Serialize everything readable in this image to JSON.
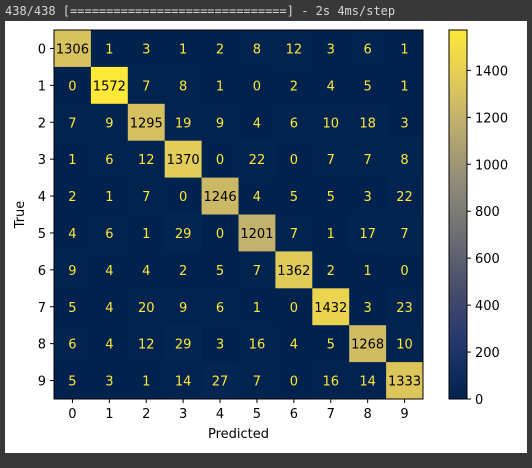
{
  "console": {
    "progress_line": "438/438 [==============================] - 2s 4ms/step"
  },
  "chart_data": {
    "type": "heatmap",
    "title": "",
    "xlabel": "Predicted",
    "ylabel": "True",
    "x_labels": [
      "0",
      "1",
      "2",
      "3",
      "4",
      "5",
      "6",
      "7",
      "8",
      "9"
    ],
    "y_labels": [
      "0",
      "1",
      "2",
      "3",
      "4",
      "5",
      "6",
      "7",
      "8",
      "9"
    ],
    "matrix": [
      [
        1306,
        1,
        3,
        1,
        2,
        8,
        12,
        3,
        6,
        1
      ],
      [
        0,
        1572,
        7,
        8,
        1,
        0,
        2,
        4,
        5,
        1
      ],
      [
        7,
        9,
        1295,
        19,
        9,
        4,
        6,
        10,
        18,
        3
      ],
      [
        1,
        6,
        12,
        1370,
        0,
        22,
        0,
        7,
        7,
        8
      ],
      [
        2,
        1,
        7,
        0,
        1246,
        4,
        5,
        5,
        3,
        22
      ],
      [
        4,
        6,
        1,
        29,
        0,
        1201,
        7,
        1,
        17,
        7
      ],
      [
        9,
        4,
        4,
        2,
        5,
        7,
        1362,
        2,
        1,
        0
      ],
      [
        5,
        4,
        20,
        9,
        6,
        1,
        0,
        1432,
        3,
        23
      ],
      [
        6,
        4,
        12,
        29,
        3,
        16,
        4,
        5,
        1268,
        10
      ],
      [
        5,
        3,
        1,
        14,
        27,
        7,
        0,
        16,
        14,
        1333
      ]
    ],
    "colormap": "cividis",
    "color_range": [
      0,
      1572
    ],
    "colorbar_ticks": [
      0,
      200,
      400,
      600,
      800,
      1000,
      1200,
      1400
    ],
    "grid": false
  }
}
